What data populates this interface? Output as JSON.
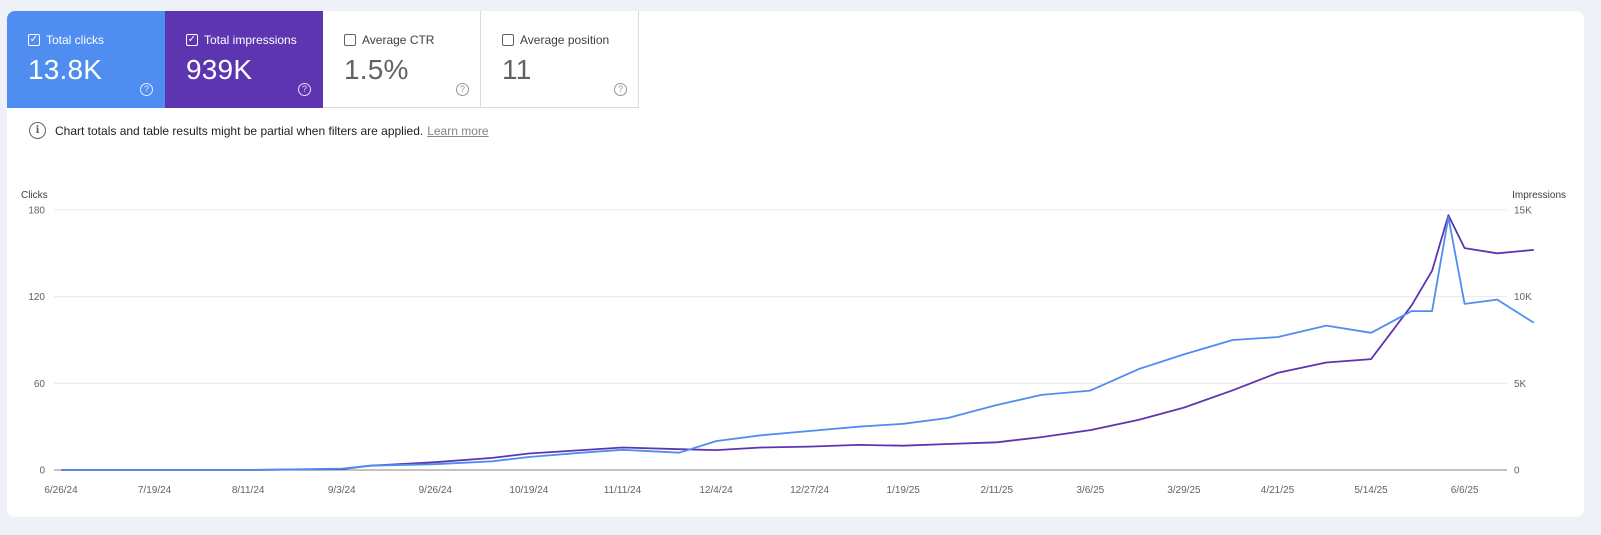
{
  "metrics": [
    {
      "label": "Total clicks",
      "value": "13.8K",
      "checked": true,
      "color": "#4f8ef0"
    },
    {
      "label": "Total impressions",
      "value": "939K",
      "checked": true,
      "color": "#5e35b1"
    },
    {
      "label": "Average CTR",
      "value": "1.5%",
      "checked": false
    },
    {
      "label": "Average position",
      "value": "11",
      "checked": false
    }
  ],
  "notice": {
    "text": "Chart totals and table results might be partial when filters are applied.",
    "link": "Learn more"
  },
  "chart_data": {
    "type": "line",
    "left_axis": {
      "title": "Clicks",
      "ticks": [
        "0",
        "60",
        "120",
        "180"
      ],
      "tick_values": [
        0,
        60,
        120,
        180
      ],
      "range": [
        0,
        180
      ]
    },
    "right_axis": {
      "title": "Impressions",
      "ticks": [
        "0",
        "5K",
        "10K",
        "15K"
      ],
      "tick_values": [
        0,
        5000,
        10000,
        15000
      ],
      "range": [
        0,
        15000
      ]
    },
    "x_ticks": [
      "6/26/24",
      "7/19/24",
      "8/11/24",
      "9/3/24",
      "9/26/24",
      "10/19/24",
      "11/11/24",
      "12/4/24",
      "12/27/24",
      "1/19/25",
      "2/11/25",
      "3/6/25",
      "3/29/25",
      "4/21/25",
      "5/14/25",
      "6/6/25"
    ],
    "grid": true,
    "series": [
      {
        "name": "Total clicks",
        "axis": "left",
        "color": "#4f8ef0",
        "points": [
          [
            "6/26/24",
            0
          ],
          [
            "7/19/24",
            0
          ],
          [
            "8/11/24",
            0
          ],
          [
            "9/3/24",
            1
          ],
          [
            "9/10/24",
            3
          ],
          [
            "9/26/24",
            4
          ],
          [
            "10/10/24",
            6
          ],
          [
            "10/19/24",
            9
          ],
          [
            "11/1/24",
            12
          ],
          [
            "11/11/24",
            14
          ],
          [
            "11/25/24",
            12
          ],
          [
            "12/4/24",
            20
          ],
          [
            "12/15/24",
            24
          ],
          [
            "12/27/24",
            27
          ],
          [
            "1/8/25",
            30
          ],
          [
            "1/19/25",
            32
          ],
          [
            "1/30/25",
            36
          ],
          [
            "2/11/25",
            45
          ],
          [
            "2/22/25",
            52
          ],
          [
            "3/6/25",
            55
          ],
          [
            "3/18/25",
            70
          ],
          [
            "3/29/25",
            80
          ],
          [
            "4/10/25",
            90
          ],
          [
            "4/21/25",
            92
          ],
          [
            "5/3/25",
            100
          ],
          [
            "5/14/25",
            95
          ],
          [
            "5/24/25",
            110
          ],
          [
            "5/29/25",
            110
          ],
          [
            "6/2/25",
            175
          ],
          [
            "6/6/25",
            115
          ],
          [
            "6/14/25",
            118
          ],
          [
            "6/23/25",
            102
          ]
        ]
      },
      {
        "name": "Total impressions",
        "axis": "right",
        "color": "#5e35b1",
        "points": [
          [
            "6/26/24",
            0
          ],
          [
            "7/19/24",
            0
          ],
          [
            "8/11/24",
            0
          ],
          [
            "9/3/24",
            50
          ],
          [
            "9/10/24",
            250
          ],
          [
            "9/26/24",
            450
          ],
          [
            "10/10/24",
            700
          ],
          [
            "10/19/24",
            950
          ],
          [
            "11/1/24",
            1150
          ],
          [
            "11/11/24",
            1300
          ],
          [
            "11/25/24",
            1200
          ],
          [
            "12/4/24",
            1150
          ],
          [
            "12/15/24",
            1300
          ],
          [
            "12/27/24",
            1350
          ],
          [
            "1/8/25",
            1450
          ],
          [
            "1/19/25",
            1400
          ],
          [
            "1/30/25",
            1500
          ],
          [
            "2/11/25",
            1600
          ],
          [
            "2/22/25",
            1900
          ],
          [
            "3/6/25",
            2300
          ],
          [
            "3/18/25",
            2900
          ],
          [
            "3/29/25",
            3600
          ],
          [
            "4/10/25",
            4600
          ],
          [
            "4/21/25",
            5600
          ],
          [
            "5/3/25",
            6200
          ],
          [
            "5/14/25",
            6400
          ],
          [
            "5/24/25",
            9500
          ],
          [
            "5/29/25",
            11500
          ],
          [
            "6/2/25",
            14700
          ],
          [
            "6/6/25",
            12800
          ],
          [
            "6/14/25",
            12500
          ],
          [
            "6/23/25",
            12700
          ]
        ]
      }
    ]
  }
}
